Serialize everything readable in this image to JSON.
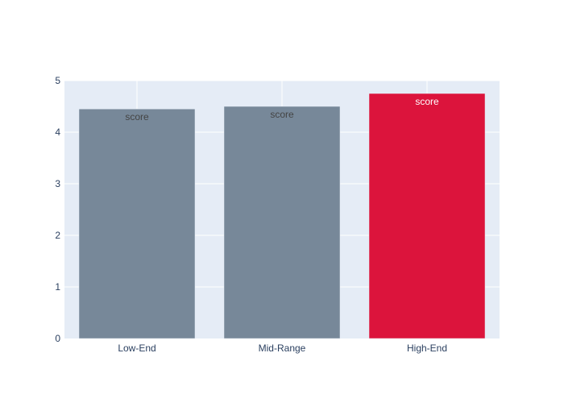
{
  "chart_data": {
    "type": "bar",
    "categories": [
      "Low-End",
      "Mid-Range",
      "High-End"
    ],
    "values": [
      4.45,
      4.5,
      4.75
    ],
    "bar_text": [
      "score",
      "score",
      "score"
    ],
    "ylim": [
      0,
      5
    ],
    "yticks": [
      0,
      1,
      2,
      3,
      4,
      5
    ],
    "ytick_labels": [
      "0",
      "1",
      "2",
      "3",
      "4",
      "5"
    ],
    "title": "",
    "xlabel": "",
    "ylabel": "",
    "grid": true,
    "colors": {
      "default_bar": "#778899",
      "highlight_bar": "#DC143C",
      "plot_background": "#E5ECF6",
      "grid": "#ffffff",
      "tick_text": "#2a3f5f",
      "label_text_dark": "#444444",
      "label_text_light": "#ffffff"
    },
    "highlight_index": 2
  }
}
